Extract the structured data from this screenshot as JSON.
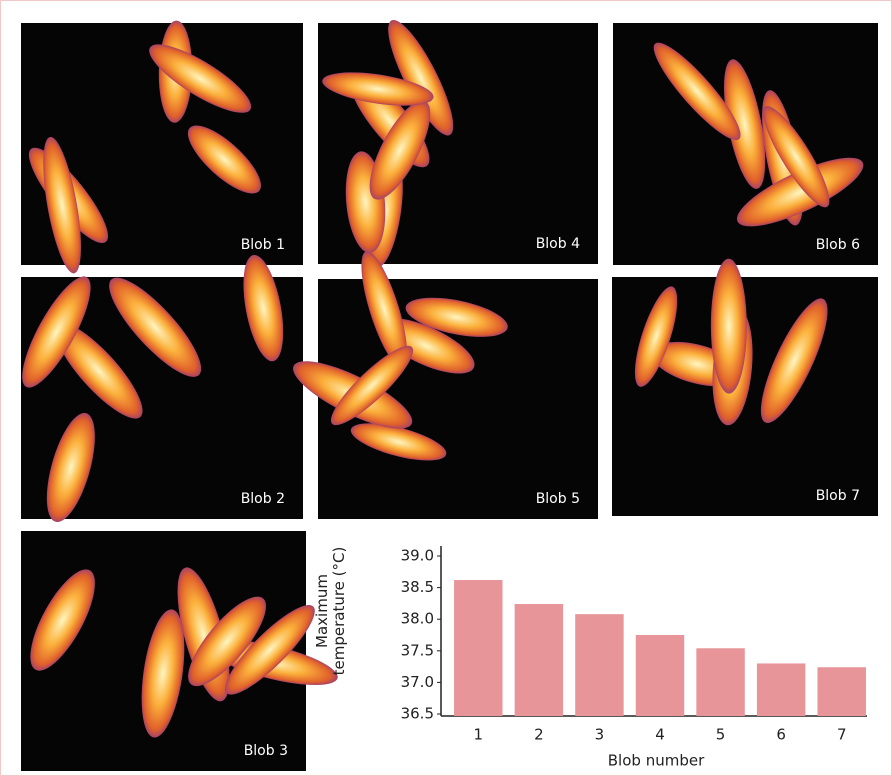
{
  "panels": [
    {
      "label": "Blob 1"
    },
    {
      "label": "Blob 4"
    },
    {
      "label": "Blob 6"
    },
    {
      "label": "Blob 2"
    },
    {
      "label": "Blob 5"
    },
    {
      "label": "Blob 7"
    },
    {
      "label": "Blob 3"
    }
  ],
  "chart_data": {
    "type": "bar",
    "y_label": "Maximum temperature (°C)",
    "x_label": "Blob number",
    "categories": [
      "1",
      "2",
      "3",
      "4",
      "5",
      "6",
      "7"
    ],
    "values": [
      38.62,
      38.24,
      38.08,
      37.75,
      37.54,
      37.3,
      37.24
    ],
    "color": "#e8959a",
    "ylim": [
      36.5,
      39.0
    ],
    "yticks": [
      {
        "value": 36.5,
        "label": "36.5"
      },
      {
        "value": 37.0,
        "label": "37.0"
      },
      {
        "value": 37.5,
        "label": "37.5"
      },
      {
        "value": 38.0,
        "label": "38.0"
      },
      {
        "value": 38.5,
        "label": "38.5"
      },
      {
        "value": 39.0,
        "label": "39.0"
      }
    ]
  }
}
